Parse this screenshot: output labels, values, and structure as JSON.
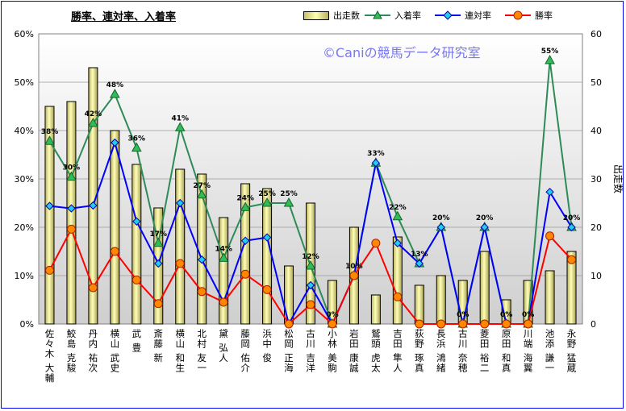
{
  "title": "勝率、連対率、入着率",
  "watermark": "©Caniの競馬データ研究室",
  "legend": {
    "starts": "出走数",
    "place_rate": "入着率",
    "quinella_rate": "連対率",
    "win_rate": "勝率"
  },
  "colors": {
    "starts_bar": "#f0f0a0",
    "place_rate": "#2e8b57",
    "place_marker": "#33bb55",
    "quinella_rate": "#0000ff",
    "quinella_marker": "#22ccee",
    "win_rate": "#ff0000",
    "win_marker": "#ff8800",
    "plot_bg_top": "#ffffff",
    "plot_bg_bottom": "#cfcfcf"
  },
  "chart_data": {
    "type": "bar",
    "categories": [
      "佐々木 大輔",
      "鮫島 克駿",
      "丹内 祐次",
      "横山 武史",
      "武 豊",
      "斎藤 新",
      "横山 和生",
      "北村 友一",
      "黛 弘人",
      "藤岡 佑介",
      "浜中 俊",
      "松岡 正海",
      "古川 吉洋",
      "小林 美駒",
      "岩田 康誠",
      "鷲頭 虎太",
      "吉田 隼人",
      "荻野 琢真",
      "長浜 鴻緒",
      "古川 奈穂",
      "菱田 裕二",
      "原田 和真",
      "川端 海翼",
      "池添 謙一",
      "永野 猛蔵"
    ],
    "yaxis_left": {
      "ticks": [
        "0%",
        "10%",
        "20%",
        "30%",
        "40%",
        "50%",
        "60%"
      ],
      "ylim": [
        0,
        60
      ]
    },
    "yaxis_right": {
      "label": "出走数",
      "ticks": [
        "0",
        "10",
        "20",
        "30",
        "40",
        "50",
        "60"
      ],
      "ylim": [
        0,
        60
      ]
    },
    "grid": true,
    "series": [
      {
        "name": "出走数",
        "kind": "bar",
        "axis": "right",
        "values": [
          45,
          46,
          53,
          40,
          33,
          24,
          32,
          31,
          22,
          29,
          28,
          12,
          25,
          9,
          20,
          6,
          18,
          8,
          10,
          9,
          15,
          5,
          9,
          11,
          15
        ]
      },
      {
        "name": "入着率",
        "kind": "line",
        "axis": "left",
        "values": [
          37.8,
          30.4,
          41.5,
          47.5,
          36.4,
          16.7,
          40.6,
          26.7,
          13.6,
          24.1,
          25.0,
          25.0,
          12.0,
          0,
          10.0,
          33.3,
          22.2,
          12.5,
          20.0,
          0,
          20.0,
          0,
          0,
          54.5,
          20.0
        ],
        "data_labels": [
          "38%",
          "30%",
          "42%",
          "48%",
          "36%",
          "17%",
          "41%",
          "27%",
          "14%",
          "24%",
          "25%",
          "25%",
          "12%",
          "0%",
          "10%",
          "33%",
          "22%",
          "13%",
          "20%",
          "0%",
          "20%",
          "0%",
          "0%",
          "55%",
          "20%"
        ]
      },
      {
        "name": "連対率",
        "kind": "line",
        "axis": "left",
        "values": [
          24.4,
          23.9,
          24.5,
          37.5,
          21.2,
          12.5,
          25.0,
          13.3,
          4.5,
          17.2,
          17.9,
          0,
          8.0,
          0,
          10.0,
          33.3,
          16.7,
          12.5,
          20.0,
          0,
          20.0,
          0,
          0,
          27.3,
          20.0
        ]
      },
      {
        "name": "勝率",
        "kind": "line",
        "axis": "left",
        "values": [
          11.1,
          19.6,
          7.5,
          15.0,
          9.1,
          4.2,
          12.5,
          6.7,
          4.5,
          10.3,
          7.1,
          0,
          4.0,
          0,
          10.0,
          16.7,
          5.6,
          0,
          0,
          0,
          0,
          0,
          0,
          18.2,
          13.3
        ]
      }
    ]
  }
}
